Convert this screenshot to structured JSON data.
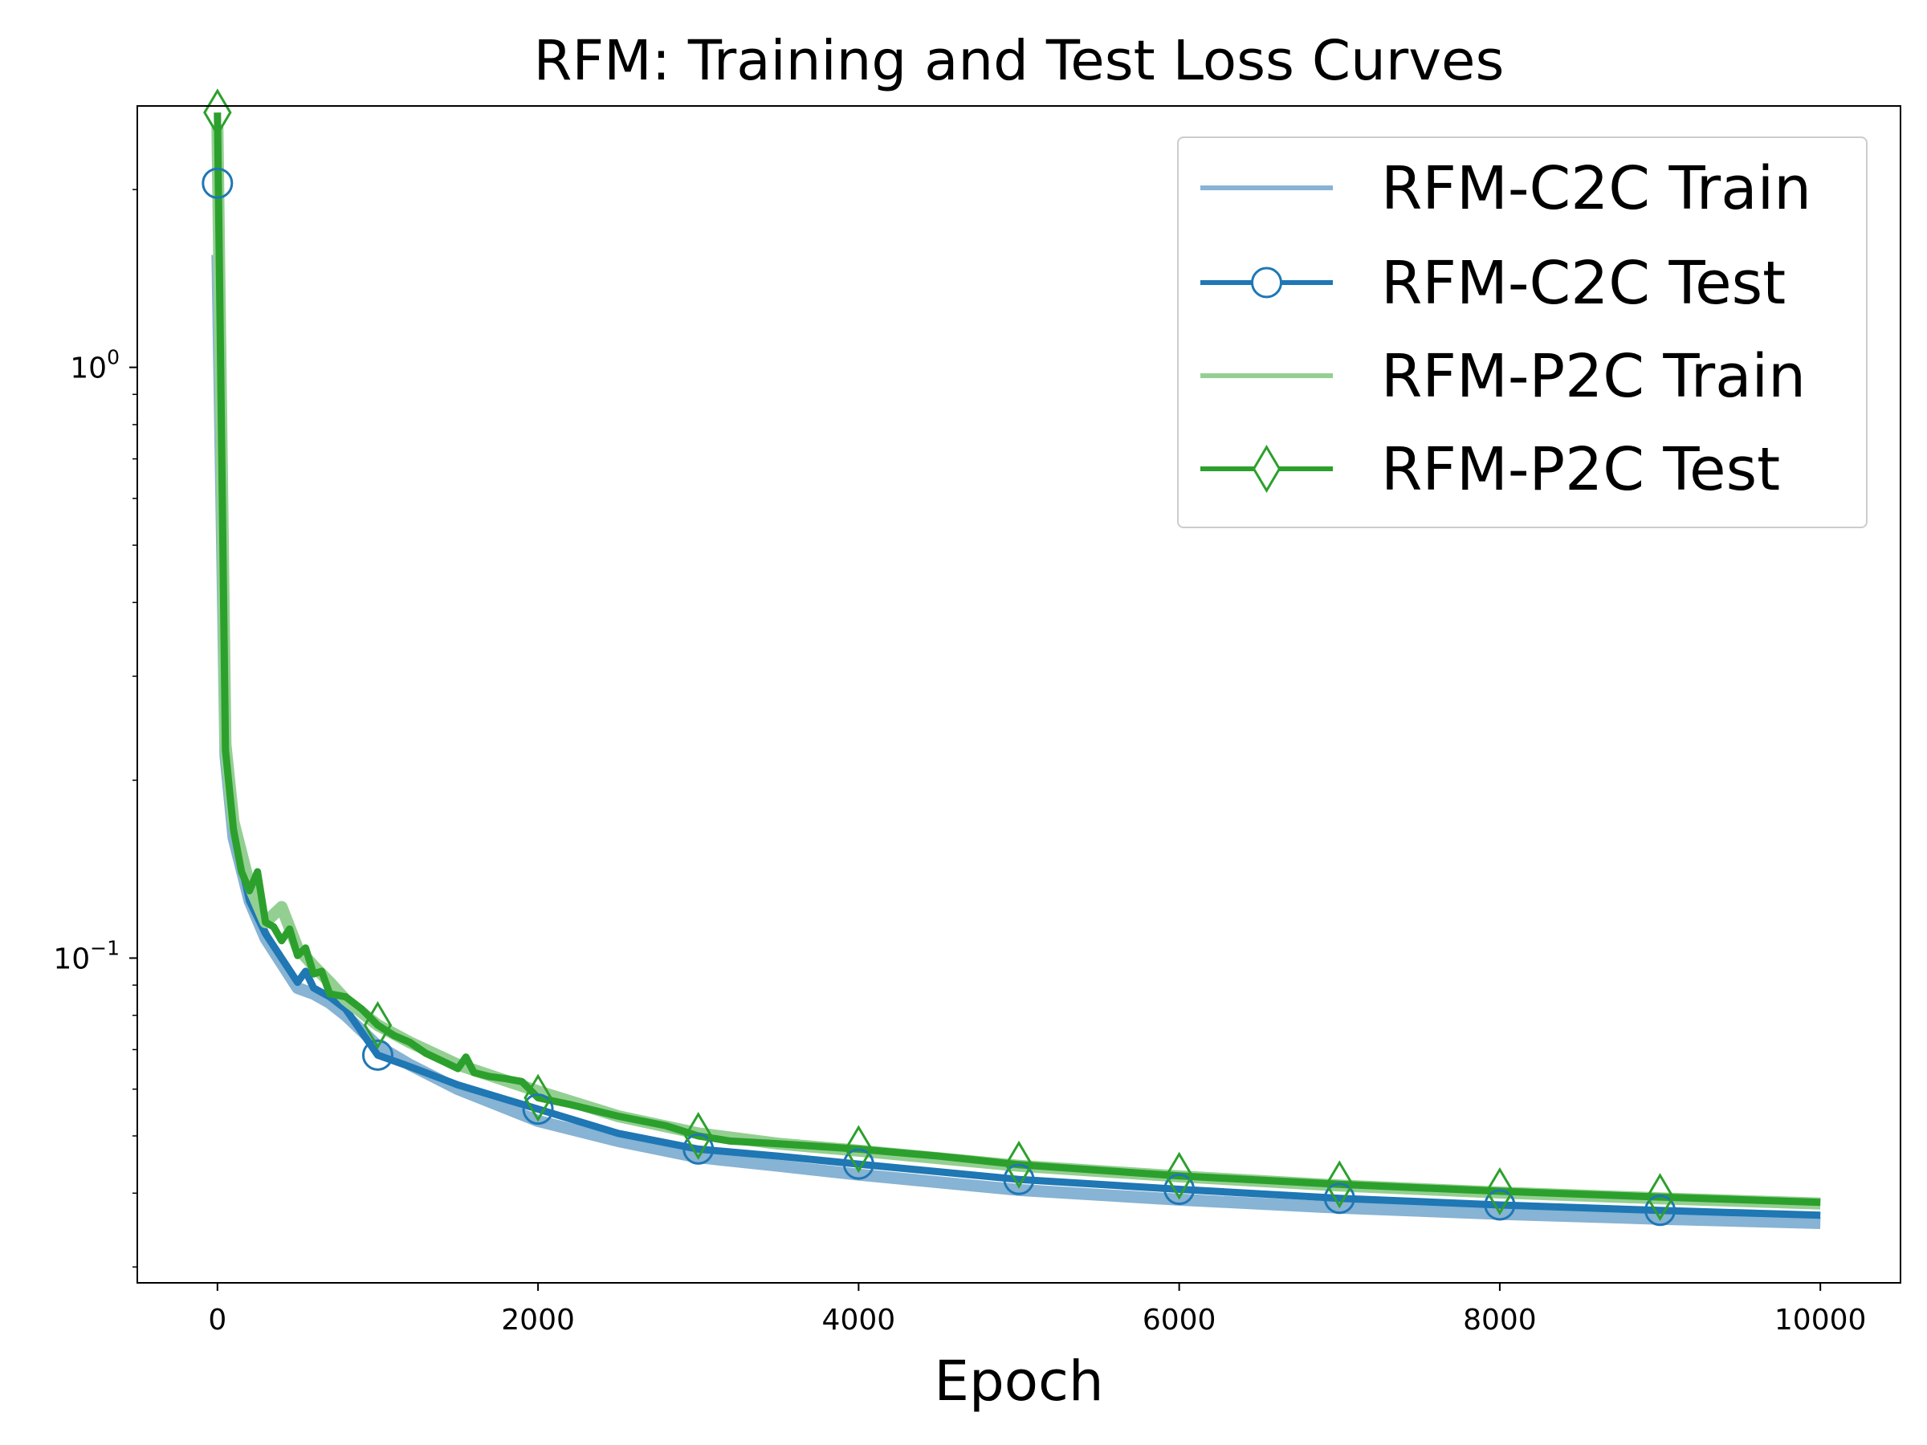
{
  "chart_data": {
    "type": "line",
    "title": "RFM: Training and Test Loss Curves",
    "xlabel": "Epoch",
    "ylabel": "",
    "yscale": "log",
    "xlim": [
      -500,
      10500
    ],
    "ylim": [
      0.0282,
      2.77
    ],
    "xticks": [
      0,
      2000,
      4000,
      6000,
      8000,
      10000
    ],
    "xtick_labels": [
      "0",
      "2000",
      "4000",
      "6000",
      "8000",
      "10000"
    ],
    "yticks": [
      {
        "value": 1.0,
        "base": "10",
        "exp": "0"
      },
      {
        "value": 0.1,
        "base": "10",
        "exp": "−1"
      }
    ],
    "legend_position": "upper right",
    "series": [
      {
        "name": "RFM-C2C Train",
        "color": "#87b3d4",
        "marker": "none",
        "x": [
          0,
          50,
          100,
          200,
          300,
          400,
          500,
          600,
          700,
          800,
          1000,
          1200,
          1500,
          2000,
          2500,
          3000,
          3500,
          4000,
          5000,
          6000,
          7000,
          8000,
          9000,
          10000
        ],
        "y": [
          1.55,
          0.22,
          0.16,
          0.125,
          0.108,
          0.098,
          0.089,
          0.087,
          0.084,
          0.08,
          0.071,
          0.066,
          0.06,
          0.053,
          0.049,
          0.046,
          0.0445,
          0.043,
          0.0405,
          0.039,
          0.0378,
          0.0369,
          0.0362,
          0.0356
        ]
      },
      {
        "name": "RFM-C2C Test",
        "color": "#1f77b4",
        "marker": "circle",
        "x": [
          0,
          50,
          100,
          200,
          300,
          400,
          500,
          550,
          600,
          700,
          800,
          1000,
          1200,
          1500,
          2000,
          2500,
          3000,
          3500,
          4000,
          5000,
          6000,
          7000,
          8000,
          9000,
          10000
        ],
        "y": [
          2.05,
          0.21,
          0.165,
          0.125,
          0.11,
          0.1,
          0.091,
          0.095,
          0.089,
          0.086,
          0.082,
          0.0685,
          0.0655,
          0.061,
          0.0555,
          0.0505,
          0.0475,
          0.0462,
          0.0448,
          0.0422,
          0.0406,
          0.0392,
          0.0382,
          0.0374,
          0.0367
        ],
        "marker_x": [
          0,
          1000,
          2000,
          3000,
          4000,
          5000,
          6000,
          7000,
          8000,
          9000
        ]
      },
      {
        "name": "RFM-P2C Train",
        "color": "#94cf92",
        "marker": "none",
        "x": [
          0,
          50,
          100,
          200,
          300,
          400,
          500,
          600,
          700,
          800,
          1000,
          1200,
          1500,
          2000,
          2500,
          3000,
          3500,
          4000,
          5000,
          6000,
          7000,
          8000,
          9000,
          10000
        ],
        "y": [
          2.55,
          0.23,
          0.17,
          0.133,
          0.115,
          0.122,
          0.104,
          0.097,
          0.091,
          0.085,
          0.077,
          0.072,
          0.066,
          0.0595,
          0.054,
          0.0505,
          0.0485,
          0.0472,
          0.0445,
          0.0427,
          0.0412,
          0.0401,
          0.0392,
          0.0384
        ]
      },
      {
        "name": "RFM-P2C Test",
        "color": "#2ca02c",
        "marker": "diamond",
        "x": [
          0,
          50,
          100,
          150,
          200,
          250,
          300,
          350,
          400,
          450,
          500,
          550,
          600,
          650,
          700,
          800,
          900,
          1000,
          1100,
          1200,
          1300,
          1400,
          1500,
          1550,
          1600,
          1700,
          1800,
          1900,
          2000,
          2200,
          2500,
          2800,
          3000,
          3200,
          3500,
          4000,
          4500,
          4700,
          5000,
          6000,
          7000,
          8000,
          9000,
          10000
        ],
        "y": [
          2.7,
          0.225,
          0.165,
          0.14,
          0.13,
          0.14,
          0.115,
          0.113,
          0.107,
          0.112,
          0.101,
          0.104,
          0.094,
          0.095,
          0.087,
          0.086,
          0.082,
          0.077,
          0.074,
          0.072,
          0.069,
          0.067,
          0.065,
          0.068,
          0.064,
          0.063,
          0.0625,
          0.0618,
          0.058,
          0.0565,
          0.054,
          0.052,
          0.05,
          0.049,
          0.0485,
          0.0475,
          0.0462,
          0.0456,
          0.0447,
          0.0428,
          0.0414,
          0.0403,
          0.0394,
          0.0386
        ],
        "marker_x": [
          0,
          1000,
          2000,
          3000,
          4000,
          5000,
          6000,
          7000,
          8000,
          9000
        ]
      }
    ]
  }
}
